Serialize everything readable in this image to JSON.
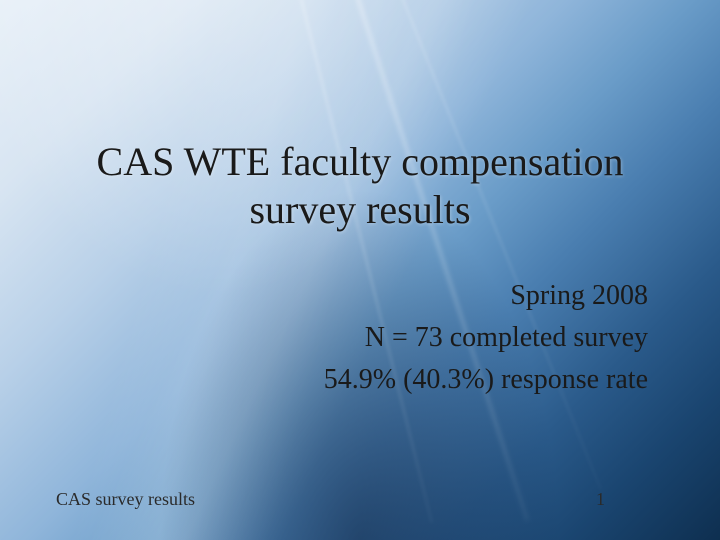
{
  "slide": {
    "title": "CAS WTE faculty compensation survey results",
    "subtitle_line1": "Spring 2008",
    "subtitle_line2": "N = 73 completed survey",
    "subtitle_line3": "54.9% (40.3%) response rate",
    "footer_left": "CAS survey results",
    "page_number": "1",
    "title_fontsize": 40,
    "subtitle_fontsize": 28,
    "footer_fontsize": 18,
    "title_color": "#1a1a1a",
    "subtitle_color": "#1a1a1a",
    "footer_color": "#2a2a2a",
    "background_gradient_start": "#e8f0f8",
    "background_gradient_end": "#0e2f50",
    "font_family": "Georgia, Times New Roman, serif"
  }
}
